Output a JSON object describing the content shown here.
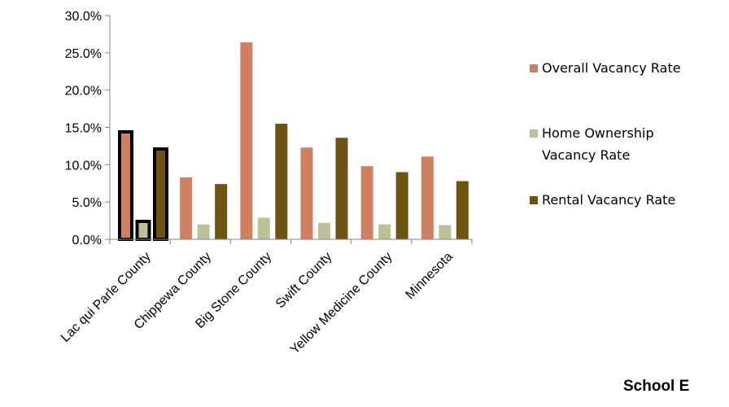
{
  "chart_data": {
    "type": "bar",
    "categories": [
      "Lac qui Parle County",
      "Chippewa County",
      "Big Stone County",
      "Swift County",
      "Yellow Medicine County",
      "Minnesota"
    ],
    "series": [
      {
        "name": "Overall Vacancy Rate",
        "color": "#D08060",
        "values": [
          14.4,
          8.3,
          26.4,
          12.3,
          9.8,
          11.1
        ]
      },
      {
        "name": "Home Ownership Vacancy Rate",
        "color": "#BCC196",
        "values": [
          2.4,
          2.0,
          2.9,
          2.2,
          2.0,
          1.9
        ]
      },
      {
        "name": "Rental Vacancy Rate",
        "color": "#6E5410",
        "values": [
          12.1,
          7.4,
          15.5,
          13.6,
          9.0,
          7.8
        ]
      }
    ],
    "ylim": [
      0,
      30
    ],
    "yticks": [
      "0.0%",
      "5.0%",
      "10.0%",
      "15.0%",
      "20.0%",
      "25.0%",
      "30.0%"
    ],
    "highlighted_category": "Lac qui Parle County",
    "legend_position": "right",
    "grid": false
  },
  "legend": {
    "items": [
      {
        "lines": [
          "Overall Vacancy Rate"
        ],
        "color": "#D08060"
      },
      {
        "lines": [
          "Home Ownership",
          "Vacancy Rate"
        ],
        "color": "#BCC196"
      },
      {
        "lines": [
          "Rental Vacancy Rate"
        ],
        "color": "#6E5410"
      }
    ]
  },
  "footer": {
    "text": "School E"
  }
}
